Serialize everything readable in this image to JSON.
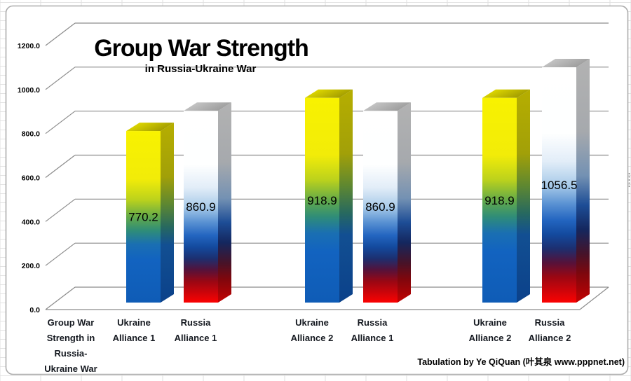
{
  "chart_data": {
    "type": "bar",
    "style": "3d-column",
    "title": "Group War Strength",
    "subtitle": "in Russia-Ukraine War",
    "footer": "Tabulation by Ye QiQuan (叶其泉  www.pppnet.net)",
    "ylabel": "",
    "xlabel": "",
    "ylim": [
      0,
      1200
    ],
    "y_ticks": [
      1200,
      1000,
      800,
      600,
      400,
      200,
      0
    ],
    "y_tick_format": "one-decimal",
    "grid": true,
    "legend_position": "none",
    "categories": [
      "Group War Strength in Russia-Ukraine War",
      "Ukraine Alliance 1",
      "Russia Alliance 1",
      "Ukraine Alliance 2",
      "Russia Alliance 1",
      "Ukraine Alliance 2",
      "Russia Alliance 2"
    ],
    "category_label_lines": [
      [
        "Group War",
        "Strength in",
        "Russia-",
        "Ukraine War"
      ],
      [
        "Ukraine",
        "Alliance 1"
      ],
      [
        "Russia",
        "Alliance 1"
      ],
      [
        "Ukraine",
        "Alliance 2"
      ],
      [
        "Russia",
        "Alliance 1"
      ],
      [
        "Ukraine",
        "Alliance 2"
      ],
      [
        "Russia",
        "Alliance 2"
      ]
    ],
    "values": [
      null,
      770.2,
      860.9,
      918.9,
      860.9,
      918.9,
      1056.5
    ],
    "bar_styles": [
      null,
      "ukraine",
      "russia",
      "ukraine",
      "russia",
      "ukraine",
      "russia"
    ]
  },
  "colors": {
    "grid_line": "#8c8c8c",
    "chart_border": "#ababab",
    "background": "#ffffff",
    "label_text": "#000000",
    "gradients": {
      "ukraine_front": [
        [
          0,
          "#f8f200"
        ],
        [
          0.28,
          "#f2ec08"
        ],
        [
          0.4,
          "#bcd21c"
        ],
        [
          0.5,
          "#63aa48"
        ],
        [
          0.58,
          "#2f8d78"
        ],
        [
          0.66,
          "#1a6fb2"
        ],
        [
          0.75,
          "#1263c0"
        ],
        [
          1,
          "#0f5cb6"
        ]
      ],
      "ukraine_side": [
        [
          0,
          "#b6ae00"
        ],
        [
          0.3,
          "#a2a008"
        ],
        [
          0.45,
          "#5f8830"
        ],
        [
          0.58,
          "#27695f"
        ],
        [
          0.68,
          "#124f92"
        ],
        [
          1,
          "#0b418a"
        ]
      ],
      "ukraine_top": [
        [
          0,
          "#f0e900"
        ],
        [
          1,
          "#a09a00"
        ]
      ],
      "russia_front": [
        [
          0,
          "#ffffff"
        ],
        [
          0.28,
          "#feffff"
        ],
        [
          0.4,
          "#e2edf8"
        ],
        [
          0.5,
          "#a9cbe9"
        ],
        [
          0.58,
          "#5a92d3"
        ],
        [
          0.65,
          "#2365c0"
        ],
        [
          0.71,
          "#134a9e"
        ],
        [
          0.77,
          "#1c2f70"
        ],
        [
          0.83,
          "#55123a"
        ],
        [
          0.89,
          "#9a0713"
        ],
        [
          1,
          "#fb0202"
        ]
      ],
      "russia_side": [
        [
          0,
          "#b2b2b2"
        ],
        [
          0.3,
          "#a6a9ad"
        ],
        [
          0.48,
          "#7391b3"
        ],
        [
          0.6,
          "#1d4d96"
        ],
        [
          0.7,
          "#14275e"
        ],
        [
          0.8,
          "#461329"
        ],
        [
          0.88,
          "#7e070d"
        ],
        [
          1,
          "#c40202"
        ]
      ],
      "russia_top": [
        [
          0,
          "#d0d0d0"
        ],
        [
          1,
          "#9c9c9c"
        ]
      ]
    }
  }
}
